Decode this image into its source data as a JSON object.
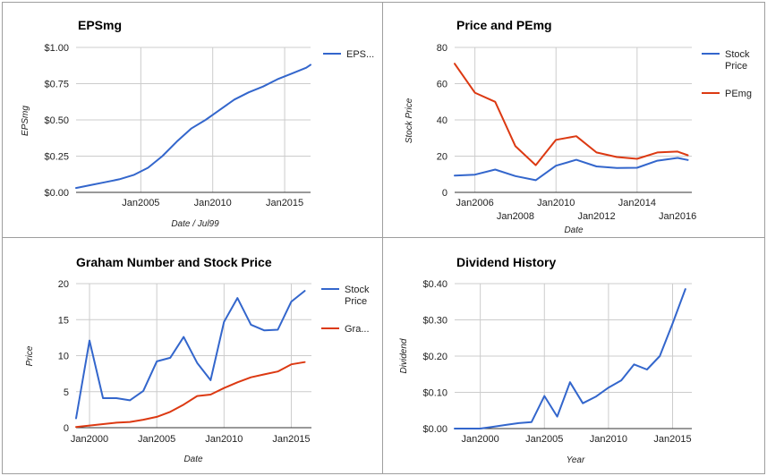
{
  "colors": {
    "blue": "#3366cc",
    "red": "#dc3912"
  },
  "chart_data": [
    {
      "type": "line",
      "title": "EPSmg",
      "xlabel": "Date / Jul99",
      "ylabel": "EPSmg",
      "x_range": [
        2000.5,
        2016.8
      ],
      "ylim": [
        0,
        1
      ],
      "y_ticks": [
        {
          "v": 0,
          "label": "$0.00"
        },
        {
          "v": 0.25,
          "label": "$0.25"
        },
        {
          "v": 0.5,
          "label": "$0.50"
        },
        {
          "v": 0.75,
          "label": "$0.75"
        },
        {
          "v": 1,
          "label": "$1.00"
        }
      ],
      "x_ticks": [
        {
          "v": 2005,
          "label": "Jan2005",
          "row": 0
        },
        {
          "v": 2010,
          "label": "Jan2010",
          "row": 0
        },
        {
          "v": 2015,
          "label": "Jan2015",
          "row": 0
        }
      ],
      "x_grid": [
        2005,
        2010,
        2015
      ],
      "legend": "right",
      "series": [
        {
          "name": "EPS...",
          "color": "#3366cc",
          "x": [
            2000.5,
            2001.5,
            2002.5,
            2003.5,
            2004.5,
            2005.5,
            2006.5,
            2007.5,
            2008.5,
            2009.5,
            2010.5,
            2011.5,
            2012.5,
            2013.5,
            2014.5,
            2015.5,
            2016.5,
            2016.8
          ],
          "y": [
            0.03,
            0.05,
            0.07,
            0.09,
            0.12,
            0.17,
            0.25,
            0.35,
            0.44,
            0.5,
            0.57,
            0.64,
            0.69,
            0.73,
            0.78,
            0.82,
            0.86,
            0.88
          ]
        }
      ]
    },
    {
      "type": "line",
      "title": "Price and PEmg",
      "xlabel": "Date",
      "ylabel": "Stock Price",
      "x_range": [
        2005.0,
        2016.7
      ],
      "ylim": [
        0,
        80
      ],
      "y_ticks": [
        {
          "v": 0,
          "label": "0"
        },
        {
          "v": 20,
          "label": "20"
        },
        {
          "v": 40,
          "label": "40"
        },
        {
          "v": 60,
          "label": "60"
        },
        {
          "v": 80,
          "label": "80"
        }
      ],
      "x_ticks": [
        {
          "v": 2006,
          "label": "Jan2006",
          "row": 0
        },
        {
          "v": 2008,
          "label": "Jan2008",
          "row": 1
        },
        {
          "v": 2010,
          "label": "Jan2010",
          "row": 0
        },
        {
          "v": 2012,
          "label": "Jan2012",
          "row": 1
        },
        {
          "v": 2014,
          "label": "Jan2014",
          "row": 0
        },
        {
          "v": 2016,
          "label": "Jan2016",
          "row": 1
        }
      ],
      "x_grid": [
        2006,
        2010,
        2014
      ],
      "legend": "right",
      "series": [
        {
          "name": "Stock Price",
          "color": "#3366cc",
          "x": [
            2005.0,
            2006.0,
            2007.0,
            2008.0,
            2009.0,
            2010.0,
            2011.0,
            2012.0,
            2013.0,
            2014.0,
            2015.0,
            2016.0,
            2016.5
          ],
          "y": [
            9.3,
            9.8,
            12.6,
            9.0,
            6.7,
            14.7,
            18.0,
            14.3,
            13.5,
            13.6,
            17.5,
            19.0,
            17.9
          ]
        },
        {
          "name": "PEmg",
          "color": "#dc3912",
          "x": [
            2005.0,
            2006.0,
            2007.0,
            2008.0,
            2009.0,
            2010.0,
            2011.0,
            2012.0,
            2013.0,
            2014.0,
            2015.0,
            2016.0,
            2016.5
          ],
          "y": [
            71,
            55,
            50,
            25.5,
            15,
            29,
            31,
            22,
            19.5,
            18.5,
            22,
            22.5,
            20.5
          ]
        }
      ]
    },
    {
      "type": "line",
      "title": "Graham Number and Stock Price",
      "xlabel": "Date",
      "ylabel": "Price",
      "x_range": [
        1999.0,
        2016.5
      ],
      "ylim": [
        0,
        20
      ],
      "y_ticks": [
        {
          "v": 0,
          "label": "0"
        },
        {
          "v": 5,
          "label": "5"
        },
        {
          "v": 10,
          "label": "10"
        },
        {
          "v": 15,
          "label": "15"
        },
        {
          "v": 20,
          "label": "20"
        }
      ],
      "x_ticks": [
        {
          "v": 2000,
          "label": "Jan2000",
          "row": 0
        },
        {
          "v": 2005,
          "label": "Jan2005",
          "row": 0
        },
        {
          "v": 2010,
          "label": "Jan2010",
          "row": 0
        },
        {
          "v": 2015,
          "label": "Jan2015",
          "row": 0
        }
      ],
      "x_grid": [
        2000,
        2005,
        2010,
        2015
      ],
      "legend": "right",
      "series": [
        {
          "name": "Stock Price",
          "color": "#3366cc",
          "x": [
            1999.0,
            2000.0,
            2001.0,
            2002.0,
            2003.0,
            2004.0,
            2005.0,
            2006.0,
            2007.0,
            2008.0,
            2009.0,
            2010.0,
            2011.0,
            2012.0,
            2013.0,
            2014.0,
            2015.0,
            2016.0
          ],
          "y": [
            1.3,
            12.1,
            4.1,
            4.1,
            3.8,
            5.1,
            9.2,
            9.7,
            12.6,
            9.0,
            6.6,
            14.7,
            18.0,
            14.3,
            13.5,
            13.6,
            17.5,
            19.0
          ]
        },
        {
          "name": "Gra...",
          "color": "#dc3912",
          "x": [
            1999.0,
            2000.0,
            2001.0,
            2002.0,
            2003.0,
            2004.0,
            2005.0,
            2006.0,
            2007.0,
            2008.0,
            2009.0,
            2010.0,
            2011.0,
            2012.0,
            2013.0,
            2014.0,
            2015.0,
            2016.0
          ],
          "y": [
            0.1,
            0.3,
            0.5,
            0.7,
            0.8,
            1.1,
            1.5,
            2.2,
            3.2,
            4.4,
            4.6,
            5.5,
            6.3,
            7.0,
            7.4,
            7.8,
            8.8,
            9.1
          ]
        }
      ]
    },
    {
      "type": "line",
      "title": "Dividend History",
      "xlabel": "Year",
      "ylabel": "Dividend",
      "x_range": [
        1998.0,
        2016.5
      ],
      "ylim": [
        0,
        0.4
      ],
      "y_ticks": [
        {
          "v": 0,
          "label": "$0.00"
        },
        {
          "v": 0.1,
          "label": "$0.10"
        },
        {
          "v": 0.2,
          "label": "$0.20"
        },
        {
          "v": 0.3,
          "label": "$0.30"
        },
        {
          "v": 0.4,
          "label": "$0.40"
        }
      ],
      "x_ticks": [
        {
          "v": 2000,
          "label": "Jan2000",
          "row": 0
        },
        {
          "v": 2005,
          "label": "Jan2005",
          "row": 0
        },
        {
          "v": 2010,
          "label": "Jan2010",
          "row": 0
        },
        {
          "v": 2015,
          "label": "Jan2015",
          "row": 0
        }
      ],
      "x_grid": [
        2000,
        2005,
        2010,
        2015
      ],
      "legend": "none",
      "series": [
        {
          "name": "",
          "color": "#3366cc",
          "x": [
            1998.0,
            1999.0,
            2000.0,
            2001.0,
            2002.0,
            2003.0,
            2004.0,
            2005.0,
            2006.0,
            2007.0,
            2008.0,
            2009.0,
            2010.0,
            2011.0,
            2012.0,
            2013.0,
            2014.0,
            2015.0,
            2016.0
          ],
          "y": [
            0,
            0,
            0,
            0.005,
            0.01,
            0.015,
            0.018,
            0.09,
            0.033,
            0.128,
            0.07,
            0.088,
            0.113,
            0.133,
            0.177,
            0.163,
            0.2,
            0.29,
            0.385
          ]
        }
      ]
    }
  ]
}
